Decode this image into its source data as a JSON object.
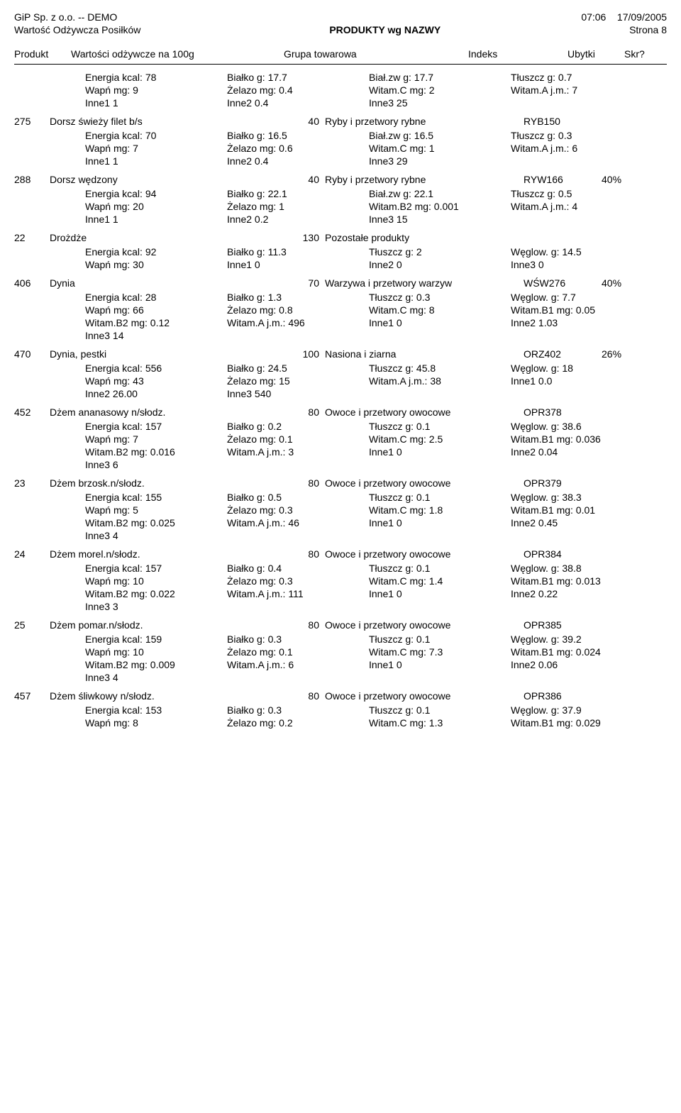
{
  "header": {
    "company": "GiP Sp. z o.o. -- DEMO",
    "time": "07:06",
    "date": "17/09/2005",
    "subtitle_left": "Wartość Odżywcza Posiłków",
    "subtitle_center": "PRODUKTY wg NAZWY",
    "page": "Strona    8"
  },
  "columns": {
    "produkt": "Produkt",
    "wartosci": "Wartości odżywcze na 100g",
    "grupa": "Grupa towarowa",
    "indeks": "Indeks",
    "ubytki": "Ubytki",
    "skr": "Skr?"
  },
  "entries": [
    {
      "num": "",
      "name": "",
      "qty": "",
      "grp": "",
      "idx": "",
      "pct": "",
      "rows": [
        [
          "Energia kcal: 78",
          "Białko g: 17.7",
          "Biał.zw g: 17.7",
          "Tłuszcz g: 0.7"
        ],
        [
          "Wapń mg: 9",
          "Żelazo mg: 0.4",
          "Witam.C mg: 2",
          "Witam.A j.m.: 7"
        ],
        [
          "Inne1 1",
          "Inne2 0.4",
          "Inne3 25",
          ""
        ]
      ]
    },
    {
      "num": "275",
      "name": "Dorsz świeży filet b/s",
      "qty": "40",
      "grp": "Ryby i przetwory rybne",
      "idx": "RYB150",
      "pct": "",
      "rows": [
        [
          "Energia kcal: 70",
          "Białko g: 16.5",
          "Biał.zw g: 16.5",
          "Tłuszcz g: 0.3"
        ],
        [
          "Wapń mg: 7",
          "Żelazo mg: 0.6",
          "Witam.C mg: 1",
          "Witam.A j.m.: 6"
        ],
        [
          "Inne1 1",
          "Inne2 0.4",
          "Inne3 29",
          ""
        ]
      ]
    },
    {
      "num": "288",
      "name": "Dorsz wędzony",
      "qty": "40",
      "grp": "Ryby i przetwory rybne",
      "idx": "RYW166",
      "pct": "40%",
      "rows": [
        [
          "Energia kcal: 94",
          "Białko g: 22.1",
          "Biał.zw g: 22.1",
          "Tłuszcz g: 0.5"
        ],
        [
          "Wapń mg: 20",
          "Żelazo mg: 1",
          "Witam.B2 mg: 0.001",
          "Witam.A j.m.: 4"
        ],
        [
          "Inne1 1",
          "Inne2 0.2",
          "Inne3 15",
          ""
        ]
      ]
    },
    {
      "num": "22",
      "name": "Drożdże",
      "qty": "130",
      "grp": "Pozostałe produkty",
      "idx": "",
      "pct": "",
      "rows": [
        [
          "Energia kcal: 92",
          "Białko g: 11.3",
          "Tłuszcz g: 2",
          "Węglow. g: 14.5"
        ],
        [
          "Wapń mg: 30",
          "Inne1 0",
          "Inne2 0",
          "Inne3 0"
        ]
      ]
    },
    {
      "num": "406",
      "name": "Dynia",
      "qty": "70",
      "grp": "Warzywa i przetwory warzyw",
      "idx": "WŚW276",
      "pct": "40%",
      "rows": [
        [
          "Energia kcal: 28",
          "Białko g: 1.3",
          "Tłuszcz g: 0.3",
          "Węglow. g: 7.7"
        ],
        [
          "Wapń mg: 66",
          "Żelazo mg: 0.8",
          "Witam.C mg: 8",
          "Witam.B1 mg: 0.05"
        ],
        [
          "Witam.B2 mg: 0.12",
          "Witam.A j.m.: 496",
          "Inne1 0",
          "Inne2 1.03"
        ],
        [
          "Inne3 14",
          "",
          "",
          ""
        ]
      ]
    },
    {
      "num": "470",
      "name": "Dynia, pestki",
      "qty": "100",
      "grp": "Nasiona i ziarna",
      "idx": "ORZ402",
      "pct": "26%",
      "rows": [
        [
          "Energia kcal: 556",
          "Białko g: 24.5",
          "Tłuszcz g: 45.8",
          "Węglow. g: 18"
        ],
        [
          "Wapń mg: 43",
          "Żelazo mg: 15",
          "Witam.A j.m.: 38",
          "Inne1 0.0"
        ],
        [
          "Inne2 26.00",
          "Inne3 540",
          "",
          ""
        ]
      ]
    },
    {
      "num": "452",
      "name": "Dżem ananasowy n/słodz.",
      "qty": "80",
      "grp": "Owoce i przetwory owocowe",
      "idx": "OPR378",
      "pct": "",
      "rows": [
        [
          "Energia kcal: 157",
          "Białko g: 0.2",
          "Tłuszcz g: 0.1",
          "Węglow. g: 38.6"
        ],
        [
          "Wapń mg: 7",
          "Żelazo mg: 0.1",
          "Witam.C mg: 2.5",
          "Witam.B1 mg: 0.036"
        ],
        [
          "Witam.B2 mg: 0.016",
          "Witam.A j.m.: 3",
          "Inne1 0",
          "Inne2 0.04"
        ],
        [
          "Inne3 6",
          "",
          "",
          ""
        ]
      ]
    },
    {
      "num": "23",
      "name": "Dżem brzosk.n/słodz.",
      "qty": "80",
      "grp": "Owoce i przetwory owocowe",
      "idx": "OPR379",
      "pct": "",
      "rows": [
        [
          "Energia kcal: 155",
          "Białko g: 0.5",
          "Tłuszcz g: 0.1",
          "Węglow. g: 38.3"
        ],
        [
          "Wapń mg: 5",
          "Żelazo mg: 0.3",
          "Witam.C mg: 1.8",
          "Witam.B1 mg: 0.01"
        ],
        [
          "Witam.B2 mg: 0.025",
          "Witam.A j.m.: 46",
          "Inne1 0",
          "Inne2 0.45"
        ],
        [
          "Inne3 4",
          "",
          "",
          ""
        ]
      ]
    },
    {
      "num": "24",
      "name": "Dżem morel.n/słodz.",
      "qty": "80",
      "grp": "Owoce i przetwory owocowe",
      "idx": "OPR384",
      "pct": "",
      "rows": [
        [
          "Energia kcal: 157",
          "Białko g: 0.4",
          "Tłuszcz g: 0.1",
          "Węglow. g: 38.8"
        ],
        [
          "Wapń mg: 10",
          "Żelazo mg: 0.3",
          "Witam.C mg: 1.4",
          "Witam.B1 mg: 0.013"
        ],
        [
          "Witam.B2 mg: 0.022",
          "Witam.A j.m.: 111",
          "Inne1 0",
          "Inne2 0.22"
        ],
        [
          "Inne3 3",
          "",
          "",
          ""
        ]
      ]
    },
    {
      "num": "25",
      "name": "Dżem pomar.n/słodz.",
      "qty": "80",
      "grp": "Owoce i przetwory owocowe",
      "idx": "OPR385",
      "pct": "",
      "rows": [
        [
          "Energia kcal: 159",
          "Białko g: 0.3",
          "Tłuszcz g: 0.1",
          "Węglow. g: 39.2"
        ],
        [
          "Wapń mg: 10",
          "Żelazo mg: 0.1",
          "Witam.C mg: 7.3",
          "Witam.B1 mg: 0.024"
        ],
        [
          "Witam.B2 mg: 0.009",
          "Witam.A j.m.: 6",
          "Inne1 0",
          "Inne2 0.06"
        ],
        [
          "Inne3 4",
          "",
          "",
          ""
        ]
      ]
    },
    {
      "num": "457",
      "name": "Dżem śliwkowy n/słodz.",
      "qty": "80",
      "grp": "Owoce i przetwory owocowe",
      "idx": "OPR386",
      "pct": "",
      "rows": [
        [
          "Energia kcal: 153",
          "Białko g: 0.3",
          "Tłuszcz g: 0.1",
          "Węglow. g: 37.9"
        ],
        [
          "Wapń mg: 8",
          "Żelazo mg: 0.2",
          "Witam.C mg: 1.3",
          "Witam.B1 mg: 0.029"
        ]
      ]
    }
  ]
}
